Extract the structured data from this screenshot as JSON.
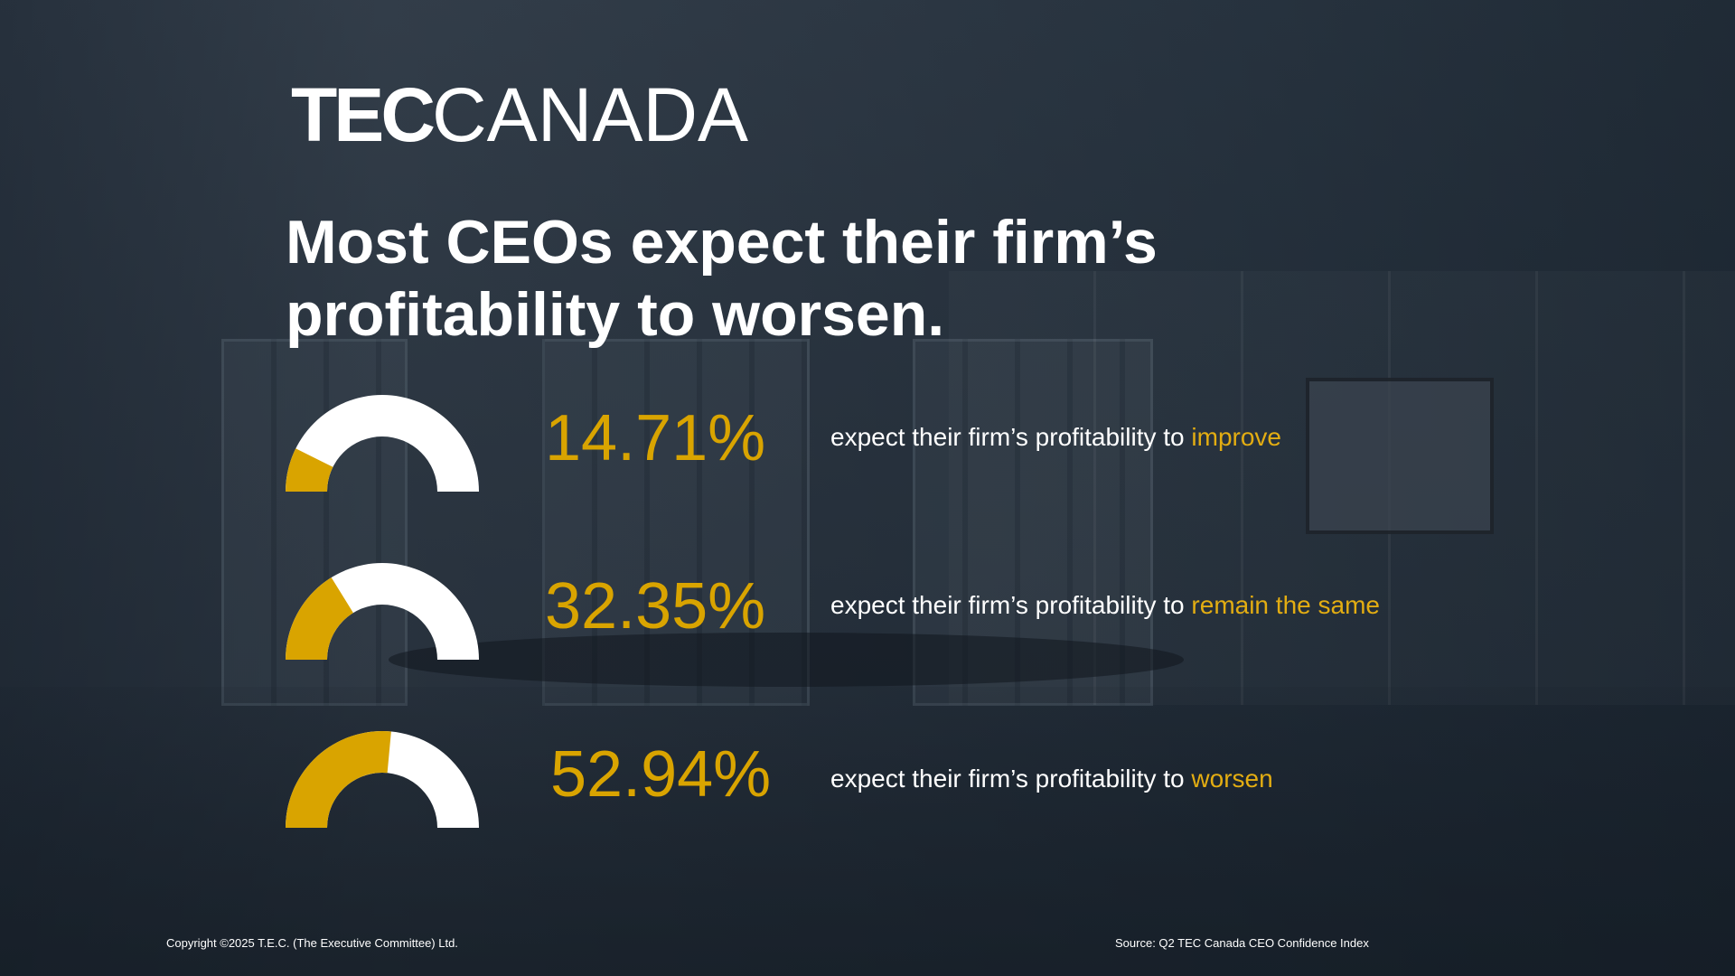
{
  "colors": {
    "accent": "#d9a400",
    "gauge_track": "#ffffff",
    "text": "#ffffff",
    "background": "#2b3642"
  },
  "logo": {
    "bold": "TEC",
    "light": "CANADA"
  },
  "headline": {
    "line1": "Most CEOs expect their firm’s",
    "line2": "profitability to worsen."
  },
  "chart_data": {
    "type": "gauge",
    "title": "Most CEOs expect their firm’s profitability to worsen.",
    "range": [
      0,
      100
    ],
    "unit": "%",
    "items": [
      {
        "value": 14.71,
        "value_label": "14.71%",
        "prefix": "expect their firm’s profitability to ",
        "highlight": "improve"
      },
      {
        "value": 32.35,
        "value_label": "32.35%",
        "prefix": "expect their firm’s profitability to ",
        "highlight": "remain the same"
      },
      {
        "value": 52.94,
        "value_label": "52.94%",
        "prefix": "expect their firm’s profitability to ",
        "highlight": "worsen"
      }
    ]
  },
  "footer": {
    "copyright": "Copyright ©2025 T.E.C. (The Executive Committee) Ltd.",
    "source": "Source: Q2 TEC Canada CEO Confidence Index"
  }
}
